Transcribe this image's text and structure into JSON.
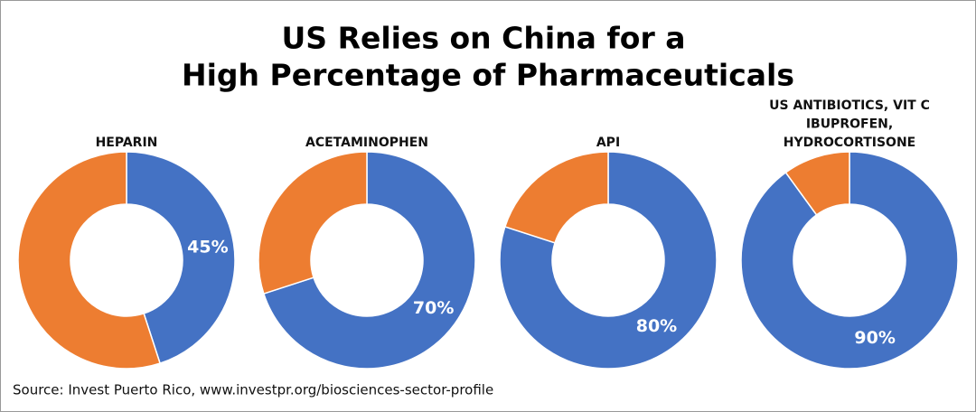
{
  "title": [
    "US Relies on China for a",
    "High Percentage of Pharmaceuticals"
  ],
  "source": "Source: Invest Puerto Rico, www.investpr.org/biosciences-sector-profile",
  "chart_data": [
    {
      "type": "donut",
      "title": [
        "HEPARIN"
      ],
      "values": [
        45,
        55
      ],
      "value_labels": [
        "45%",
        null
      ],
      "colors": [
        "#4472c4",
        "#ed7d31"
      ]
    },
    {
      "type": "donut",
      "title": [
        "ACETAMINOPHEN"
      ],
      "values": [
        70,
        30
      ],
      "value_labels": [
        "70%",
        null
      ],
      "colors": [
        "#4472c4",
        "#ed7d31"
      ]
    },
    {
      "type": "donut",
      "title": [
        "API"
      ],
      "values": [
        80,
        20
      ],
      "value_labels": [
        "80%",
        null
      ],
      "colors": [
        "#4472c4",
        "#ed7d31"
      ]
    },
    {
      "type": "donut",
      "title": [
        "US ANTIBIOTICS, VIT C",
        "IBUPROFEN,",
        "HYDROCORTISONE"
      ],
      "values": [
        90,
        10
      ],
      "value_labels": [
        "90%",
        null
      ],
      "colors": [
        "#4472c4",
        "#ed7d31"
      ]
    }
  ]
}
